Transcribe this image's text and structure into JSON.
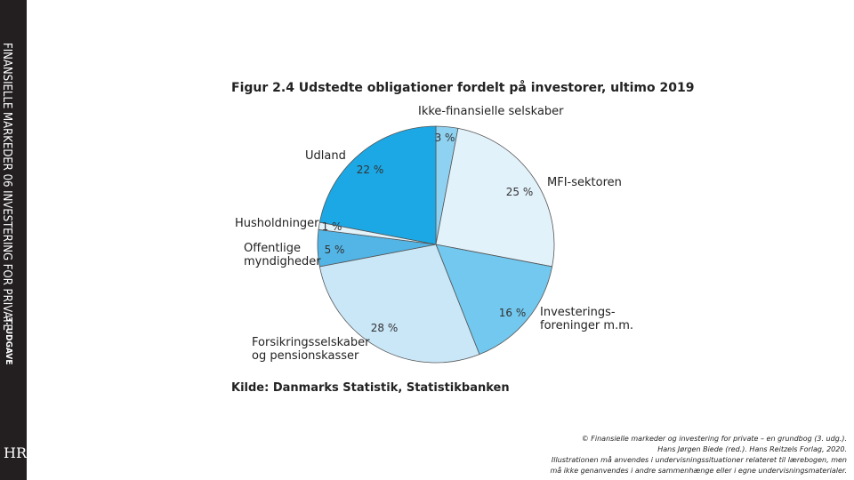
{
  "sidebar": {
    "title": "FINANSIELLE MARKEDER 06 INVESTERING FOR PRIVATE",
    "edition": "3. UDGAVE",
    "logo": "HR"
  },
  "chart_data": {
    "type": "pie",
    "title": "Figur 2.4  Udstedte obligationer fordelt på investorer, ultimo 2019",
    "categories": [
      "Ikke-finansielle selskaber",
      "MFI-sektoren",
      "Investerings-\nforeninger m.m.",
      "Forsikringsselskaber\nog pensionskasser",
      "Offentlige\nmyndigheder",
      "Husholdninger",
      "Udland"
    ],
    "values": [
      3,
      25,
      16,
      28,
      5,
      1,
      22
    ],
    "value_labels": [
      "3 %",
      "25 %",
      "16 %",
      "28 %",
      "5 %",
      "1 %",
      "22 %"
    ],
    "colors": [
      "#8fd1f1",
      "#e2f2fb",
      "#72c8ee",
      "#cae7f8",
      "#52b5e6",
      "#e4f2f9",
      "#1ba8e5"
    ],
    "source": "Kilde: Danmarks Statistik, Statistikbanken"
  },
  "footer": {
    "lines": [
      "© Finansielle markeder og investering for private – en grundbog (3. udg.).",
      "Hans Jørgen Biede (red.). Hans Reitzels Forlag, 2020.",
      "Illustrationen må anvendes i undervisningssituationer relateret til lærebogen, men",
      "må ikke genanvendes i andre sammenhænge eller i egne undervisningsmaterialer."
    ]
  }
}
